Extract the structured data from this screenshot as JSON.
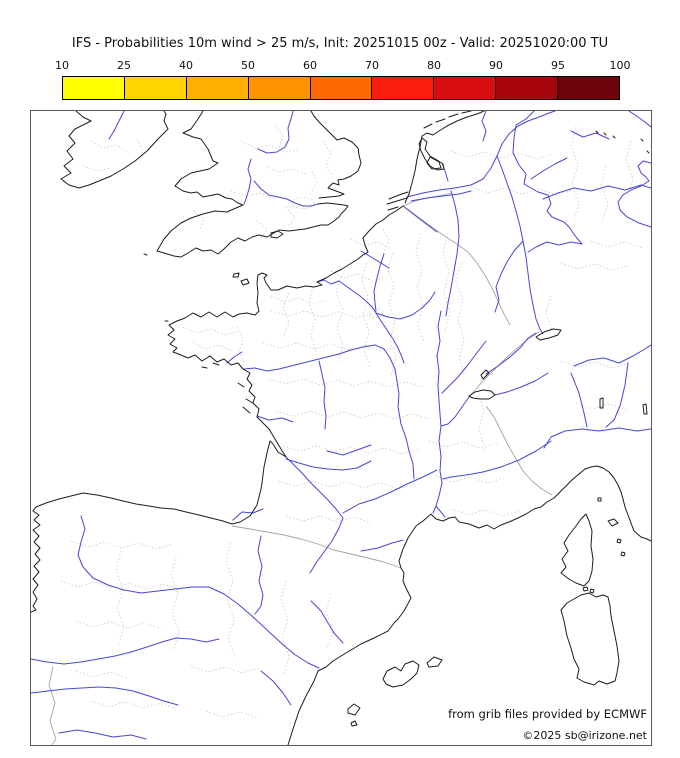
{
  "title": "IFS - Probabilities 10m wind > 25 m/s, Init: 20251015 00z - Valid: 20251020:00 TU",
  "colorbar": {
    "tick_labels": [
      "10",
      "25",
      "40",
      "50",
      "60",
      "70",
      "80",
      "90",
      "95",
      "100"
    ],
    "colors": [
      "#ffff00",
      "#ffd400",
      "#ffb000",
      "#ff9400",
      "#ff6900",
      "#fa1e10",
      "#d90e12",
      "#a8060f",
      "#6c040c"
    ],
    "outline_color": "#000000"
  },
  "map": {
    "attribution_line1": "from grib files provided by ECMWF",
    "attribution_line2": "©2025 sb@irizone.net",
    "colors": {
      "coastline": "#1c1c1c",
      "river": "#4646d8",
      "admin_boundary": "#c6c6c6",
      "country_border": "#a3a3a3",
      "frame": "#5a5a5a",
      "sea": "#ffffff",
      "land": "#ffffff"
    }
  }
}
